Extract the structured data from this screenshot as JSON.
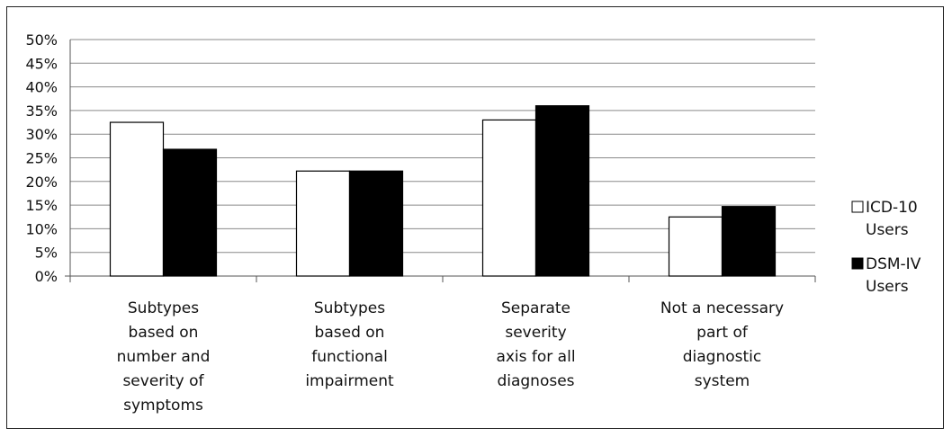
{
  "chart_data": {
    "type": "bar",
    "title": "",
    "xlabel": "",
    "ylabel": "",
    "ylim": [
      0,
      50
    ],
    "yticks": [
      "0%",
      "5%",
      "10%",
      "15%",
      "20%",
      "25%",
      "30%",
      "35%",
      "40%",
      "45%",
      "50%"
    ],
    "categories": [
      [
        "Subtypes",
        "based on",
        "number and",
        "severity of",
        "symptoms"
      ],
      [
        "Subtypes",
        "based on",
        "functional",
        "impairment"
      ],
      [
        "Separate",
        "severity",
        "axis for all",
        "diagnoses"
      ],
      [
        "Not a necessary",
        "part of",
        "diagnostic",
        "system"
      ]
    ],
    "series": [
      {
        "name": [
          "ICD-10",
          "Users"
        ],
        "values": [
          32.5,
          22.2,
          33.0,
          12.5
        ],
        "color": "#ffffff",
        "legend_marker": "□"
      },
      {
        "name": [
          "DSM-IV",
          "Users"
        ],
        "values": [
          26.8,
          22.2,
          36.0,
          14.7
        ],
        "color": "#000000",
        "legend_marker": "■"
      }
    ],
    "grid": true,
    "legend_position": "right"
  }
}
